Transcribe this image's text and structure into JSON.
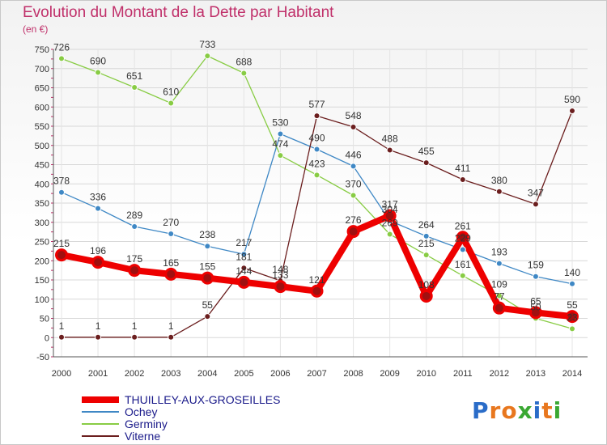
{
  "title": "Evolution du Montant de la Dette par Habitant",
  "unit_label": "(en €)",
  "logo": {
    "text": "Proxiti",
    "colors": [
      "#2a6cc8",
      "#e8771e",
      "#e8771e",
      "#3aa832",
      "#2a6cc8",
      "#e8771e",
      "#3aa832"
    ]
  },
  "chart_data": {
    "type": "line",
    "title": "Evolution du Montant de la Dette par Habitant",
    "ylabel": "(en €)",
    "xlabel": "",
    "x": [
      2000,
      2001,
      2002,
      2003,
      2004,
      2005,
      2006,
      2007,
      2008,
      2009,
      2010,
      2011,
      2012,
      2013,
      2014
    ],
    "ylim": [
      -50,
      750
    ],
    "yticks": [
      -50,
      0,
      50,
      100,
      150,
      200,
      250,
      300,
      350,
      400,
      450,
      500,
      550,
      600,
      650,
      700,
      750
    ],
    "grid": true,
    "legend_position": "bottom-left",
    "series": [
      {
        "name": "THUILLEY-AUX-GROSEILLES",
        "color": "#ee0000",
        "thick": true,
        "values": [
          215,
          196,
          175,
          165,
          155,
          144,
          133,
          121,
          276,
          317,
          108,
          261,
          77,
          65,
          55
        ],
        "labels": [
          "215",
          "196",
          "175",
          "165",
          "155",
          "144",
          "133",
          "121",
          "276",
          "317",
          "108",
          "261",
          "77",
          "65",
          "55"
        ]
      },
      {
        "name": "Ochey",
        "color": "#3f88c5",
        "thick": false,
        "values": [
          378,
          336,
          289,
          270,
          238,
          217,
          530,
          490,
          446,
          304,
          264,
          229,
          193,
          159,
          140
        ],
        "labels": [
          "378",
          "336",
          "289",
          "270",
          "238",
          "217",
          "530",
          "490",
          "446",
          "304",
          "264",
          "229",
          "193",
          "159",
          "140"
        ]
      },
      {
        "name": "Germiny",
        "color": "#88cc44",
        "thick": false,
        "values": [
          726,
          690,
          651,
          610,
          733,
          688,
          474,
          423,
          370,
          269,
          215,
          161,
          109,
          50,
          23
        ],
        "labels": [
          "726",
          "690",
          "651",
          "610",
          "733",
          "688",
          "474",
          "423",
          "370",
          "269",
          "215",
          "161",
          "109",
          "50",
          "23"
        ]
      },
      {
        "name": "Viterne",
        "color": "#6b1e1e",
        "thick": false,
        "values": [
          1,
          1,
          1,
          1,
          55,
          181,
          148,
          577,
          548,
          488,
          455,
          411,
          380,
          347,
          590
        ],
        "labels": [
          "1",
          "1",
          "1",
          "1",
          "55",
          "181",
          "148",
          "577",
          "548",
          "488",
          "455",
          "411",
          "380",
          "347",
          "590"
        ]
      }
    ]
  }
}
